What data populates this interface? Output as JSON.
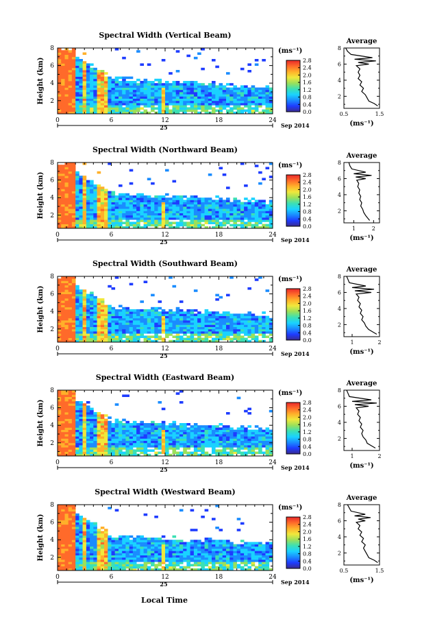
{
  "figure": {
    "xlabel": "Local Time",
    "date_left": "25",
    "date_right": "Sep 2014"
  },
  "colorbar": {
    "unit": "(ms⁻¹)",
    "ticks": [
      "0.0",
      "0.4",
      "0.8",
      "1.2",
      "1.6",
      "2.0",
      "2.4",
      "2.8"
    ],
    "stops": [
      "#3a2a8f",
      "#1e3cff",
      "#1a8cff",
      "#1ad2ff",
      "#3ce0b4",
      "#9be05a",
      "#f0e83c",
      "#ffb02a",
      "#ff6a2a",
      "#e8282a"
    ]
  },
  "chart_data": [
    {
      "type": "heatmap",
      "title": "Spectral Width (Vertical Beam)",
      "xlabel": "",
      "ylabel": "Height (km)",
      "x_ticks": [
        "0",
        "6",
        "12",
        "18",
        "24"
      ],
      "xlim": [
        0,
        24
      ],
      "y_ticks": [
        "2",
        "4",
        "6",
        "8"
      ],
      "ylim": [
        0.5,
        8
      ],
      "clim": [
        0,
        2.8
      ],
      "average_profile": {
        "title": "Average",
        "xlabel": "(ms⁻¹)",
        "x_ticks": [
          "0.5",
          "1.5"
        ],
        "xlim": [
          0.5,
          1.5
        ],
        "y_ticks": [
          "2",
          "4",
          "6",
          "8"
        ],
        "ylim": [
          0.5,
          8
        ],
        "width": [
          1.45,
          1.35,
          1.2,
          1.15,
          1.1,
          1.0,
          1.05,
          0.95,
          1.0,
          0.9,
          0.95,
          0.9,
          0.95,
          0.85,
          1.2,
          0.9,
          1.4,
          0.8,
          1.3,
          0.7,
          0.6,
          0.55
        ],
        "height": [
          0.8,
          1.1,
          1.4,
          1.8,
          2.2,
          2.6,
          3.0,
          3.4,
          3.8,
          4.2,
          4.6,
          5.0,
          5.4,
          5.8,
          6.0,
          6.2,
          6.4,
          6.6,
          6.8,
          7.2,
          7.6,
          8.0
        ]
      }
    },
    {
      "type": "heatmap",
      "title": "Spectral Width (Northward Beam)",
      "xlabel": "",
      "ylabel": "Height (km)",
      "x_ticks": [
        "0",
        "6",
        "12",
        "18",
        "24"
      ],
      "xlim": [
        0,
        24
      ],
      "y_ticks": [
        "2",
        "4",
        "6",
        "8"
      ],
      "ylim": [
        0.5,
        8
      ],
      "clim": [
        0,
        2.8
      ],
      "average_profile": {
        "title": "Average",
        "xlabel": "(ms⁻¹)",
        "x_ticks": [
          "1",
          "2"
        ],
        "xlim": [
          0.5,
          2.3
        ],
        "y_ticks": [
          "2",
          "4",
          "6",
          "8"
        ],
        "ylim": [
          0.5,
          8
        ],
        "width": [
          1.8,
          1.7,
          1.6,
          1.5,
          1.45,
          1.35,
          1.4,
          1.3,
          1.35,
          1.25,
          1.3,
          1.2,
          1.25,
          1.15,
          1.6,
          1.1,
          1.9,
          1.0,
          1.6,
          0.9,
          0.8,
          0.75
        ],
        "height": [
          0.8,
          1.1,
          1.4,
          1.8,
          2.2,
          2.6,
          3.0,
          3.4,
          3.8,
          4.2,
          4.6,
          5.0,
          5.4,
          5.8,
          6.0,
          6.2,
          6.4,
          6.6,
          6.8,
          7.2,
          7.6,
          8.0
        ]
      }
    },
    {
      "type": "heatmap",
      "title": "Spectral Width (Southward Beam)",
      "xlabel": "",
      "ylabel": "Height (km)",
      "x_ticks": [
        "0",
        "6",
        "12",
        "18",
        "24"
      ],
      "xlim": [
        0,
        24
      ],
      "y_ticks": [
        "2",
        "4",
        "6",
        "8"
      ],
      "ylim": [
        0.5,
        8
      ],
      "clim": [
        0,
        2.8
      ],
      "average_profile": {
        "title": "Average",
        "xlabel": "(ms⁻¹)",
        "x_ticks": [
          "1",
          "2"
        ],
        "xlim": [
          0.7,
          2.0
        ],
        "y_ticks": [
          "2",
          "4",
          "6",
          "8"
        ],
        "ylim": [
          0.5,
          8
        ],
        "width": [
          1.9,
          1.75,
          1.6,
          1.5,
          1.45,
          1.35,
          1.4,
          1.3,
          1.35,
          1.25,
          1.3,
          1.2,
          1.25,
          1.15,
          1.7,
          1.1,
          1.8,
          1.0,
          1.5,
          0.9,
          0.85,
          0.8
        ],
        "height": [
          0.8,
          1.1,
          1.4,
          1.8,
          2.2,
          2.6,
          3.0,
          3.4,
          3.8,
          4.2,
          4.6,
          5.0,
          5.4,
          5.8,
          6.0,
          6.2,
          6.4,
          6.6,
          6.8,
          7.2,
          7.6,
          8.0
        ]
      }
    },
    {
      "type": "heatmap",
      "title": "Spectral Width (Eastward Beam)",
      "xlabel": "",
      "ylabel": "Height (km)",
      "x_ticks": [
        "0",
        "6",
        "12",
        "18",
        "24"
      ],
      "xlim": [
        0,
        24
      ],
      "y_ticks": [
        "2",
        "4",
        "6",
        "8"
      ],
      "ylim": [
        0.5,
        8
      ],
      "clim": [
        0,
        2.8
      ],
      "average_profile": {
        "title": "Average",
        "xlabel": "(ms⁻¹)",
        "x_ticks": [
          "1",
          "2"
        ],
        "xlim": [
          0.7,
          2.0
        ],
        "y_ticks": [
          "2",
          "4",
          "6",
          "8"
        ],
        "ylim": [
          0.5,
          8
        ],
        "width": [
          1.85,
          1.7,
          1.55,
          1.5,
          1.4,
          1.35,
          1.4,
          1.3,
          1.35,
          1.25,
          1.3,
          1.2,
          1.25,
          1.15,
          1.6,
          1.1,
          1.9,
          1.0,
          1.7,
          0.9,
          0.85,
          0.8
        ],
        "height": [
          0.8,
          1.1,
          1.4,
          1.8,
          2.2,
          2.6,
          3.0,
          3.4,
          3.8,
          4.2,
          4.6,
          5.0,
          5.4,
          5.8,
          6.0,
          6.2,
          6.4,
          6.6,
          6.8,
          7.2,
          7.6,
          8.0
        ]
      }
    },
    {
      "type": "heatmap",
      "title": "Spectral Width (Westward Beam)",
      "xlabel": "",
      "ylabel": "Height (km)",
      "x_ticks": [
        "0",
        "6",
        "12",
        "18",
        "24"
      ],
      "xlim": [
        0,
        24
      ],
      "y_ticks": [
        "2",
        "4",
        "6",
        "8"
      ],
      "ylim": [
        0.5,
        8
      ],
      "clim": [
        0,
        2.8
      ],
      "average_profile": {
        "title": "Average",
        "xlabel": "(ms⁻¹)",
        "x_ticks": [
          "0.5",
          "1.5"
        ],
        "xlim": [
          0.5,
          1.5
        ],
        "y_ticks": [
          "2",
          "4",
          "6",
          "8"
        ],
        "ylim": [
          0.5,
          8
        ],
        "width": [
          1.45,
          1.35,
          1.2,
          1.15,
          1.1,
          1.05,
          1.1,
          1.0,
          1.05,
          0.95,
          1.0,
          0.9,
          0.95,
          0.85,
          1.1,
          0.9,
          1.25,
          0.8,
          1.1,
          0.7,
          0.65,
          0.6
        ],
        "height": [
          0.8,
          1.1,
          1.4,
          1.8,
          2.2,
          2.6,
          3.0,
          3.4,
          3.8,
          4.2,
          4.6,
          5.0,
          5.4,
          5.8,
          6.0,
          6.2,
          6.4,
          6.6,
          6.8,
          7.2,
          7.6,
          8.0
        ]
      }
    }
  ]
}
